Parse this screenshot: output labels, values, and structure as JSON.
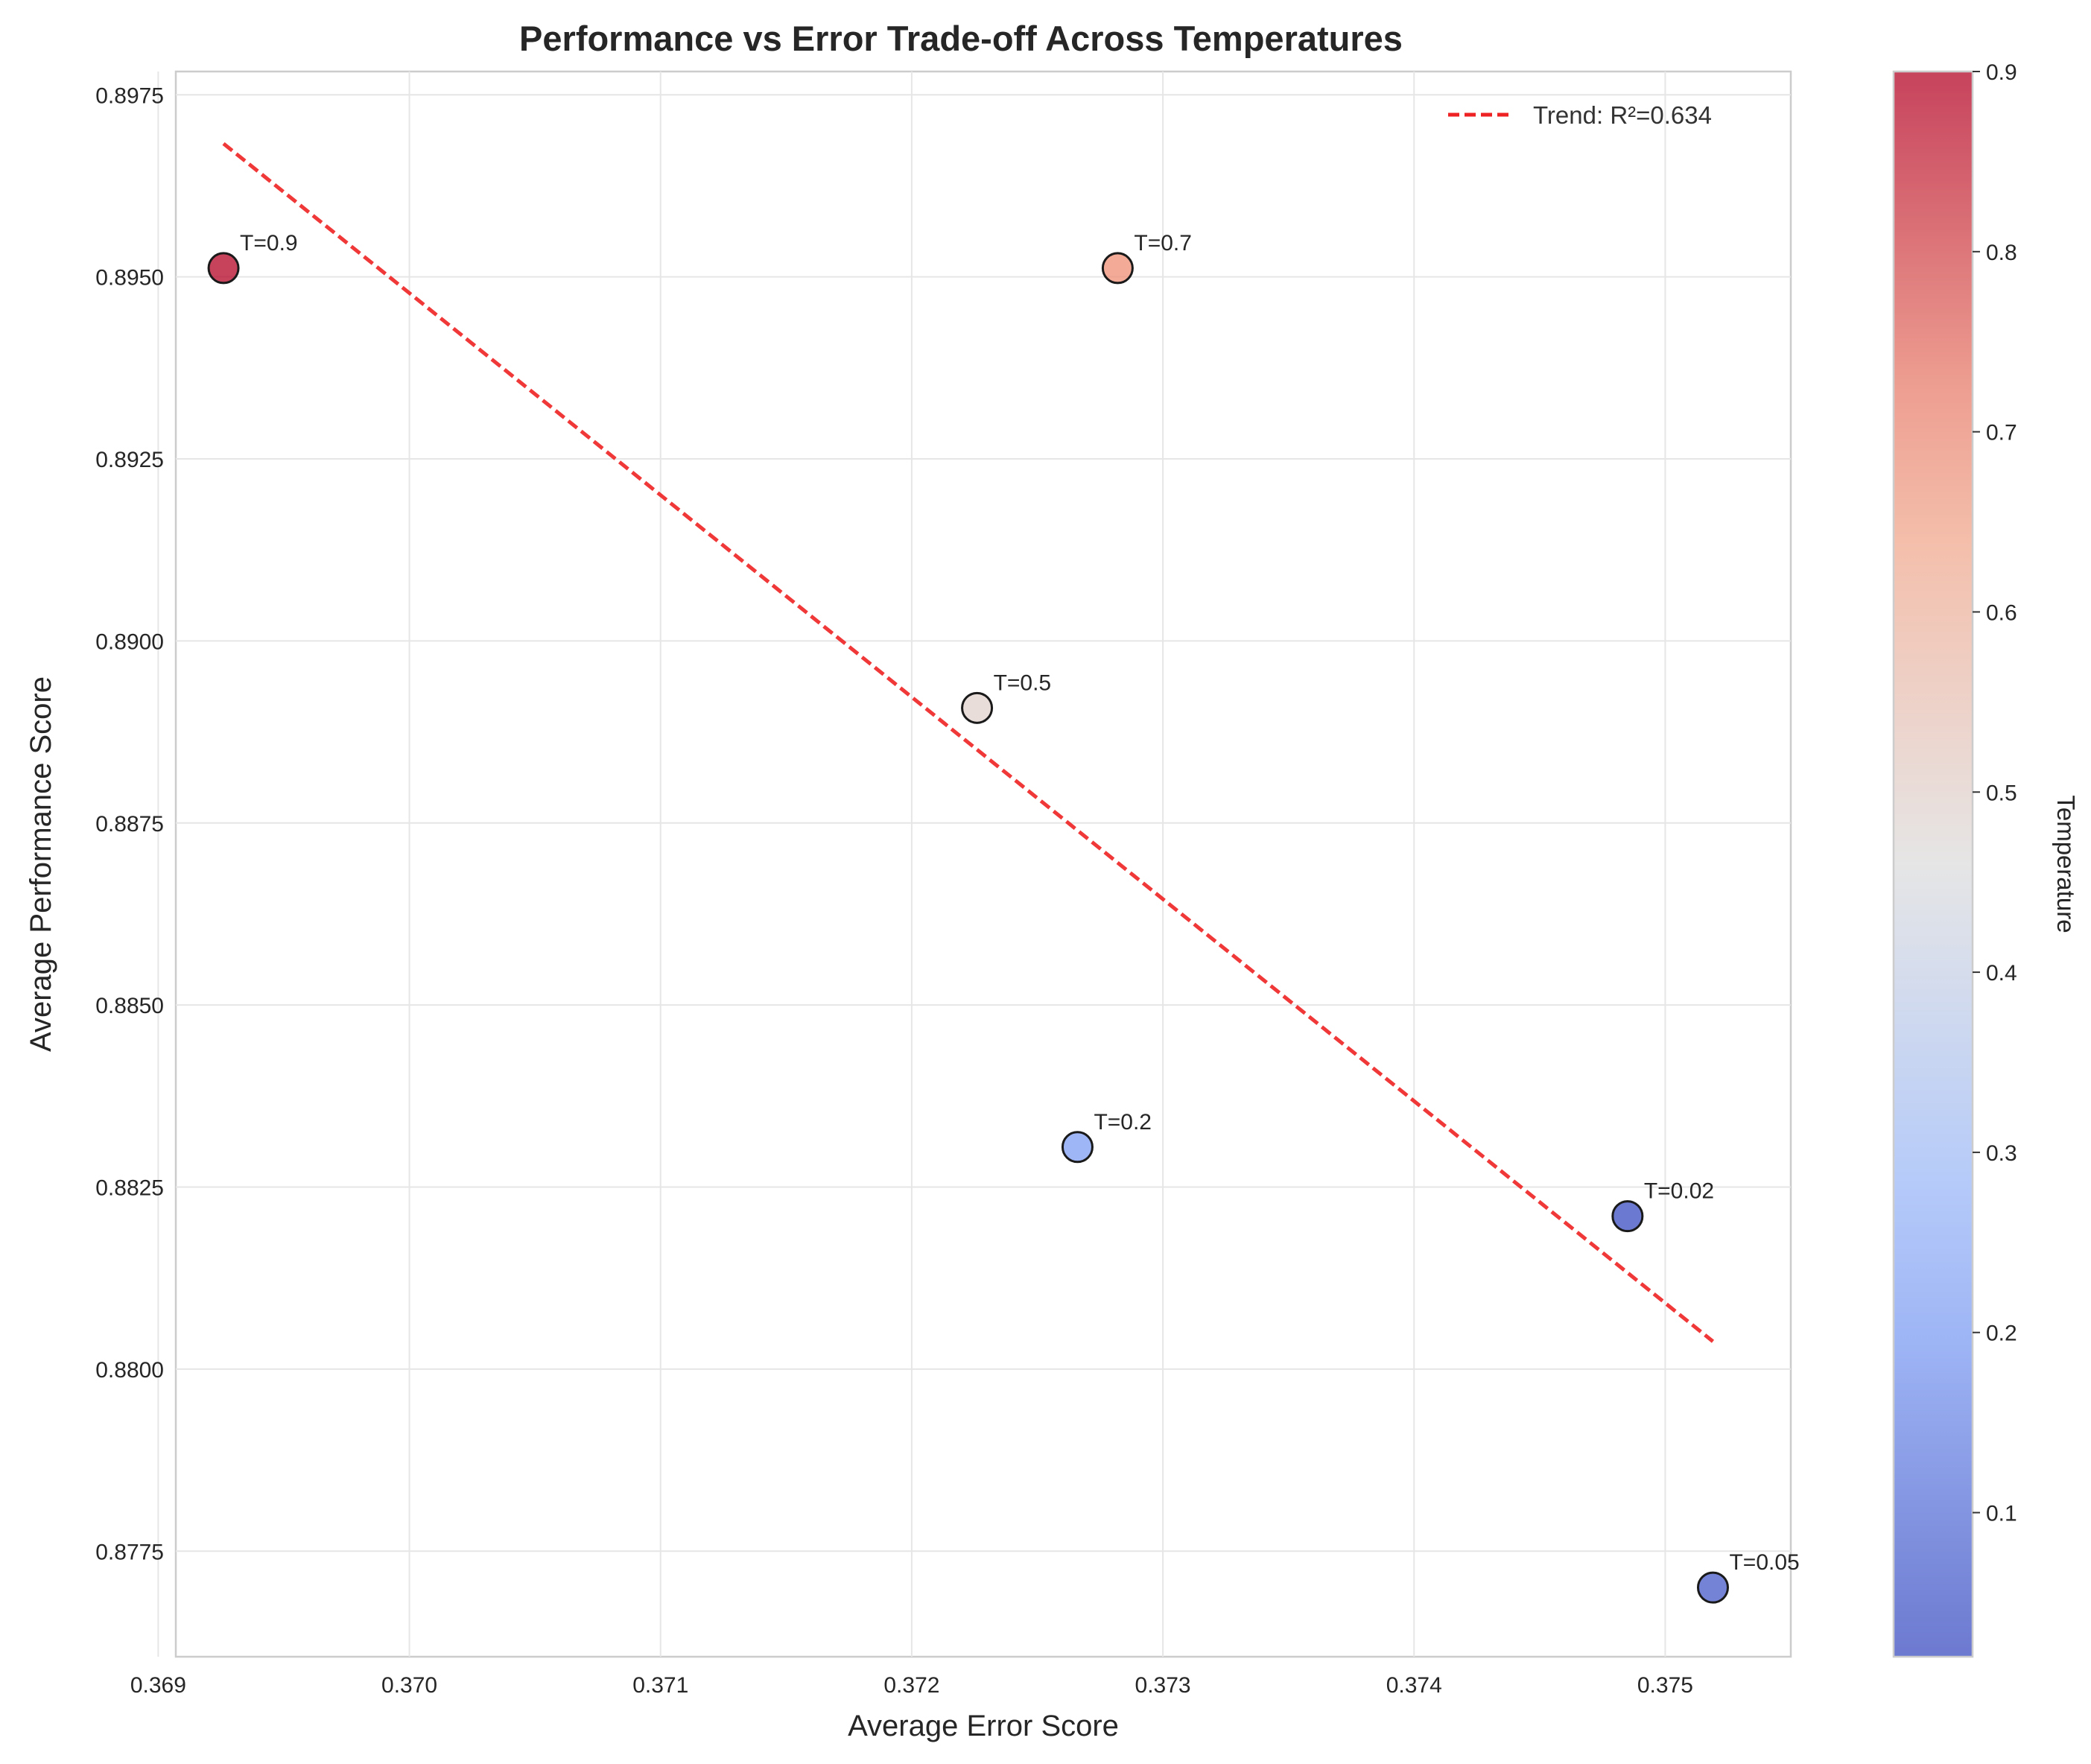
{
  "chart_data": {
    "type": "scatter",
    "title": "Performance vs Error Trade-off Across Temperatures",
    "xlabel": "Average Error Score",
    "ylabel": "Average Performance Score",
    "xlim": [
      0.36907,
      0.3755
    ],
    "ylim": [
      0.87605,
      0.89782
    ],
    "x_ticks": [
      "0.369",
      "0.370",
      "0.371",
      "0.372",
      "0.373",
      "0.374",
      "0.375"
    ],
    "x_tick_values": [
      0.369,
      0.37,
      0.371,
      0.372,
      0.373,
      0.374,
      0.375
    ],
    "y_ticks": [
      "0.8775",
      "0.8800",
      "0.8825",
      "0.8850",
      "0.8875",
      "0.8900",
      "0.8925",
      "0.8950",
      "0.8975"
    ],
    "y_tick_values": [
      0.8775,
      0.88,
      0.8825,
      0.885,
      0.8875,
      0.89,
      0.8925,
      0.895,
      0.8975
    ],
    "grid": true,
    "points": [
      {
        "label": "T=0.9",
        "temperature": 0.9,
        "x": 0.36926,
        "y": 0.89512
      },
      {
        "label": "T=0.7",
        "temperature": 0.7,
        "x": 0.37282,
        "y": 0.89512
      },
      {
        "label": "T=0.5",
        "temperature": 0.5,
        "x": 0.37226,
        "y": 0.88908
      },
      {
        "label": "T=0.2",
        "temperature": 0.2,
        "x": 0.37266,
        "y": 0.88305
      },
      {
        "label": "T=0.02",
        "temperature": 0.02,
        "x": 0.37485,
        "y": 0.8821
      },
      {
        "label": "T=0.05",
        "temperature": 0.05,
        "x": 0.37519,
        "y": 0.877
      }
    ],
    "trend": {
      "label": "Trend: R²=0.634",
      "style": "dashed",
      "color": "#ee2222",
      "x_start": 0.36926,
      "y_start": 0.89683,
      "x_end": 0.37519,
      "y_end": 0.88038
    },
    "legend": {
      "placement": "top-right",
      "entries": [
        "Trend: R²=0.634"
      ]
    },
    "colorbar": {
      "label": "Temperature",
      "range": [
        0.02,
        0.9
      ],
      "ticks": [
        "0.1",
        "0.2",
        "0.3",
        "0.4",
        "0.5",
        "0.6",
        "0.7",
        "0.8",
        "0.9"
      ],
      "tick_values": [
        0.1,
        0.2,
        0.3,
        0.4,
        0.5,
        0.6,
        0.7,
        0.8,
        0.9
      ],
      "colormap": "coolwarm"
    }
  }
}
